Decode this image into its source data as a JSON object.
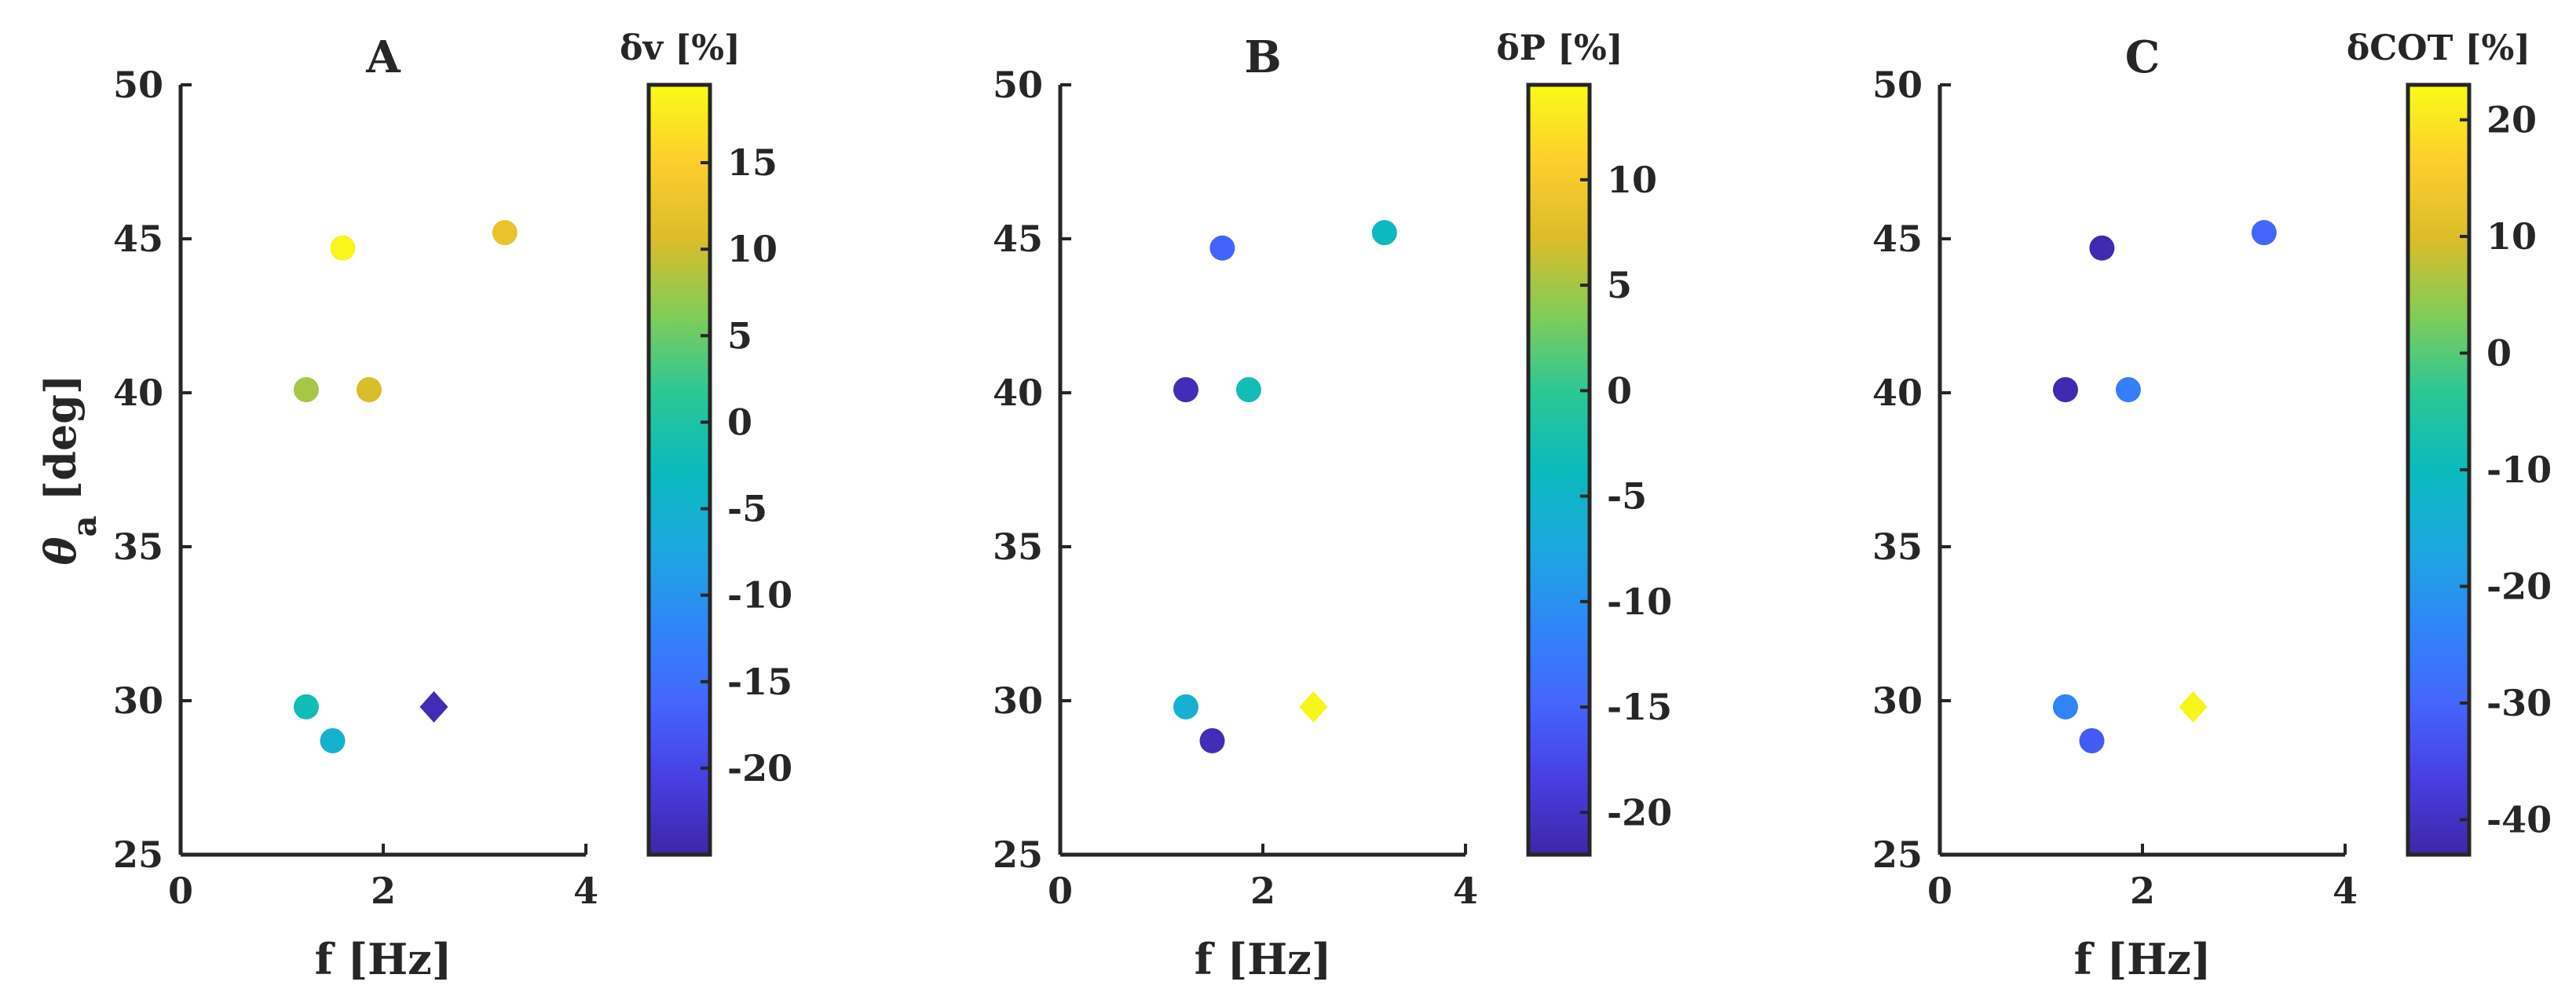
{
  "chart_data": [
    {
      "type": "scatter",
      "title": "A",
      "xlabel": "f [Hz]",
      "ylabel": "θa [deg]",
      "xlim": [
        0,
        4
      ],
      "ylim": [
        25,
        50
      ],
      "xticks": [
        "0",
        "2",
        "4"
      ],
      "yticks": [
        "25",
        "30",
        "35",
        "40",
        "45",
        "50"
      ],
      "colorbar": {
        "label": "δv [%]",
        "range": [
          -25,
          19.5
        ],
        "ticks": [
          -20,
          -15,
          -10,
          -5,
          0,
          5,
          10,
          15
        ]
      },
      "points": [
        {
          "x": 1.6,
          "y": 44.7,
          "value": 19,
          "marker": "circle"
        },
        {
          "x": 3.2,
          "y": 45.2,
          "value": 12.5,
          "marker": "circle"
        },
        {
          "x": 1.24,
          "y": 40.1,
          "value": 8,
          "marker": "circle"
        },
        {
          "x": 1.86,
          "y": 40.1,
          "value": 10.5,
          "marker": "circle"
        },
        {
          "x": 1.24,
          "y": 29.8,
          "value": -2,
          "marker": "circle"
        },
        {
          "x": 1.5,
          "y": 28.7,
          "value": -5,
          "marker": "circle"
        },
        {
          "x": 2.5,
          "y": 29.8,
          "value": -24,
          "marker": "diamond"
        }
      ]
    },
    {
      "type": "scatter",
      "title": "B",
      "xlabel": "f [Hz]",
      "ylabel": "",
      "xlim": [
        0,
        4
      ],
      "ylim": [
        25,
        50
      ],
      "xticks": [
        "0",
        "2",
        "4"
      ],
      "yticks": [
        "25",
        "30",
        "35",
        "40",
        "45",
        "50"
      ],
      "colorbar": {
        "label": "δP [%]",
        "range": [
          -22,
          14.5
        ],
        "ticks": [
          -20,
          -15,
          -10,
          -5,
          0,
          5,
          10
        ]
      },
      "points": [
        {
          "x": 1.6,
          "y": 44.7,
          "value": -15,
          "marker": "circle"
        },
        {
          "x": 3.2,
          "y": 45.2,
          "value": -4,
          "marker": "circle"
        },
        {
          "x": 1.24,
          "y": 40.1,
          "value": -21,
          "marker": "circle"
        },
        {
          "x": 1.86,
          "y": 40.1,
          "value": -3,
          "marker": "circle"
        },
        {
          "x": 1.24,
          "y": 29.8,
          "value": -6,
          "marker": "circle"
        },
        {
          "x": 1.5,
          "y": 28.7,
          "value": -21,
          "marker": "circle"
        },
        {
          "x": 2.5,
          "y": 29.8,
          "value": 14,
          "marker": "diamond"
        }
      ]
    },
    {
      "type": "scatter",
      "title": "C",
      "xlabel": "f [Hz]",
      "ylabel": "",
      "xlim": [
        0,
        4
      ],
      "ylim": [
        25,
        50
      ],
      "xticks": [
        "0",
        "2",
        "4"
      ],
      "yticks": [
        "25",
        "30",
        "35",
        "40",
        "45",
        "50"
      ],
      "colorbar": {
        "label": "δCOT [%]",
        "range": [
          -43,
          23
        ],
        "ticks": [
          -40,
          -30,
          -20,
          -10,
          0,
          10,
          20
        ]
      },
      "points": [
        {
          "x": 1.6,
          "y": 44.7,
          "value": -42,
          "marker": "circle"
        },
        {
          "x": 3.2,
          "y": 45.2,
          "value": -30,
          "marker": "circle"
        },
        {
          "x": 1.24,
          "y": 40.1,
          "value": -42,
          "marker": "circle"
        },
        {
          "x": 1.86,
          "y": 40.1,
          "value": -25,
          "marker": "circle"
        },
        {
          "x": 1.24,
          "y": 29.8,
          "value": -24,
          "marker": "circle"
        },
        {
          "x": 1.5,
          "y": 28.7,
          "value": -32,
          "marker": "circle"
        },
        {
          "x": 2.5,
          "y": 29.8,
          "value": 22,
          "marker": "diamond"
        }
      ]
    }
  ],
  "colormap": [
    "#3e26a8",
    "#4740e3",
    "#4367fd",
    "#2e87f7",
    "#1ca9df",
    "#0abbbd",
    "#2bc795",
    "#81cc59",
    "#dbbd28",
    "#fcce2e",
    "#f9fb15"
  ]
}
